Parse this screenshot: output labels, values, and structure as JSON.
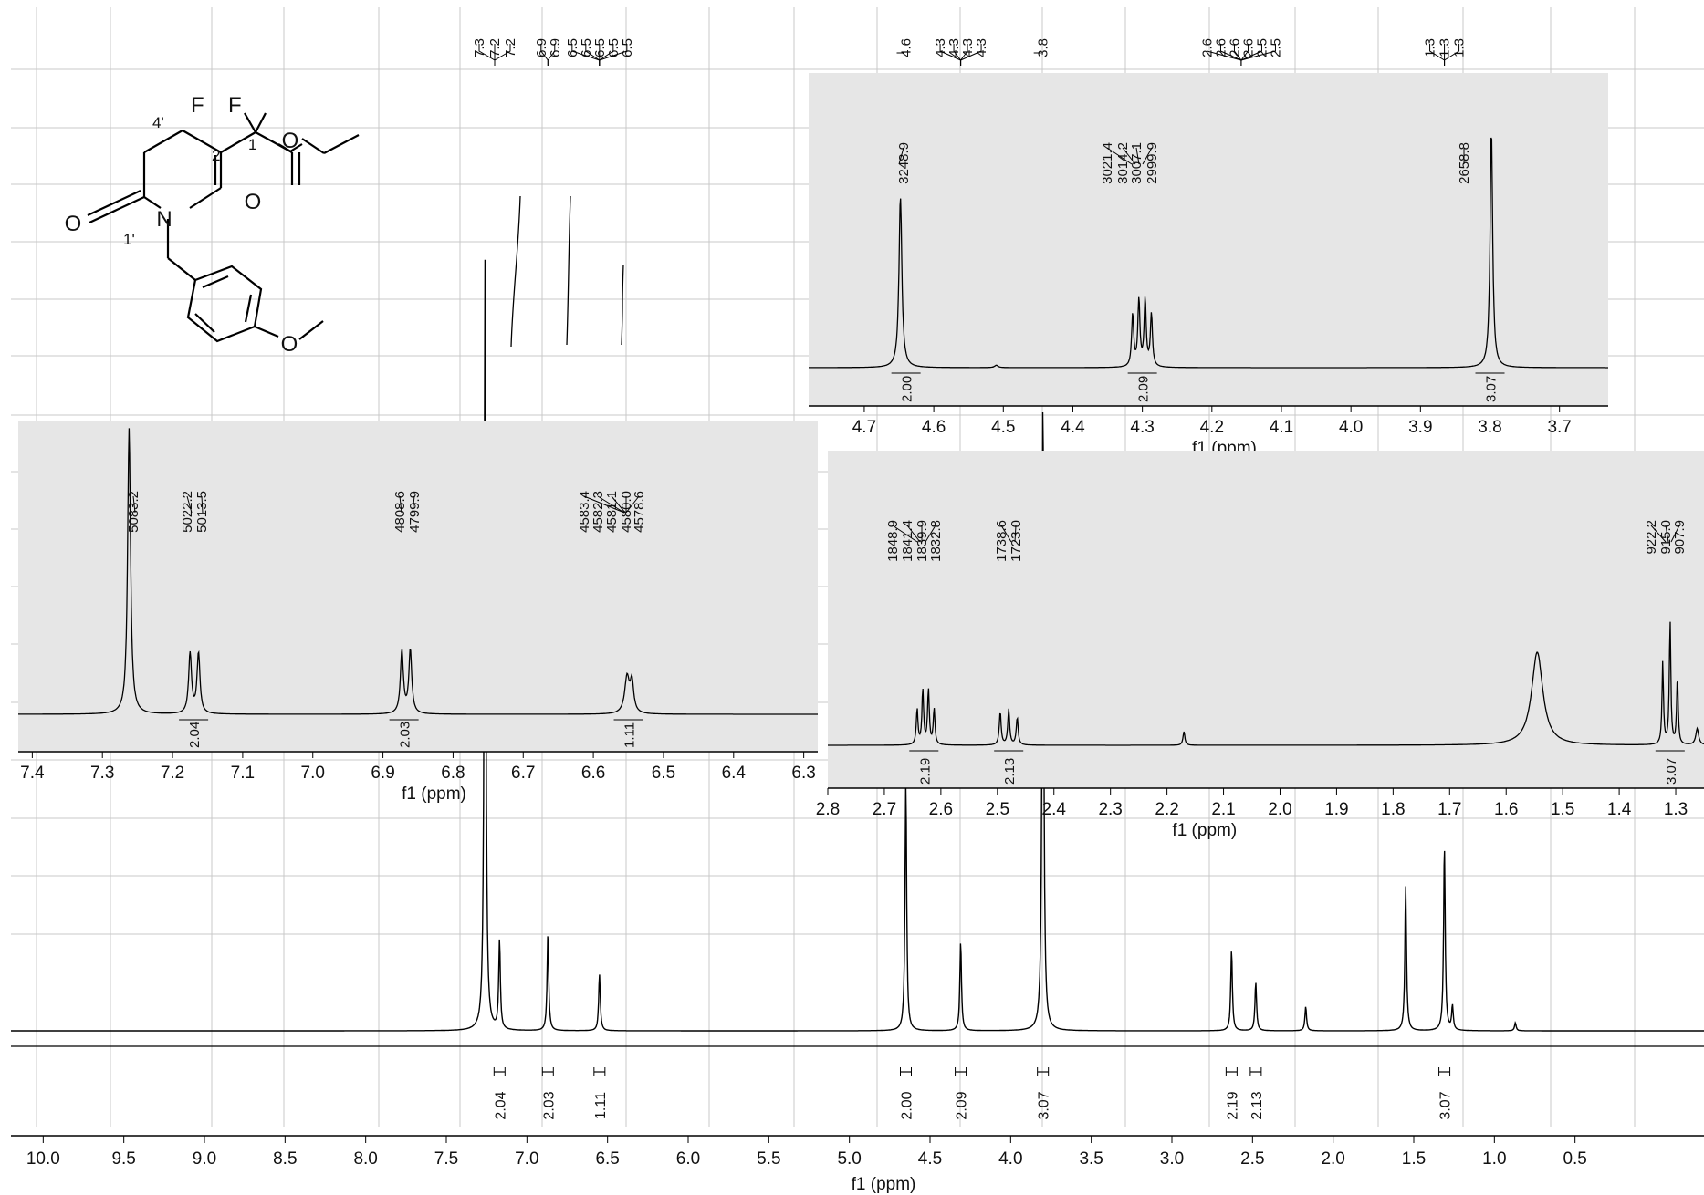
{
  "chart_data": {
    "type": "line",
    "title": "",
    "xlabel": "f1 (ppm)",
    "xlim": [
      10.2,
      -0.3
    ],
    "x_ticks": [
      "10.0",
      "9.5",
      "9.0",
      "8.5",
      "8.0",
      "7.5",
      "7.0",
      "6.5",
      "6.0",
      "5.5",
      "5.0",
      "4.5",
      "4.0",
      "3.5",
      "3.0",
      "2.5",
      "2.0",
      "1.5",
      "1.0",
      "0.5"
    ],
    "peaks": [
      {
        "ppm": 7.26,
        "height": 0.96
      },
      {
        "ppm": 7.17,
        "height": 0.11
      },
      {
        "ppm": 6.87,
        "height": 0.12
      },
      {
        "ppm": 6.55,
        "height": 0.07
      },
      {
        "ppm": 4.65,
        "height": 0.31
      },
      {
        "ppm": 4.31,
        "height": 0.11
      },
      {
        "ppm": 3.8,
        "height": 0.8
      },
      {
        "ppm": 2.63,
        "height": 0.1
      },
      {
        "ppm": 2.48,
        "height": 0.06
      },
      {
        "ppm": 2.17,
        "height": 0.03
      },
      {
        "ppm": 1.55,
        "height": 0.18
      },
      {
        "ppm": 1.31,
        "height": 0.23
      },
      {
        "ppm": 1.26,
        "height": 0.03
      },
      {
        "ppm": 0.87,
        "height": 0.01
      }
    ],
    "peak_labels_ppm": [
      "7.3",
      "7.2",
      "7.2",
      "6.9",
      "6.9",
      "6.5",
      "6.5",
      "6.5",
      "6.5",
      "6.5",
      "4.6",
      "4.3",
      "4.3",
      "4.3",
      "4.3",
      "3.8",
      "2.6",
      "2.6",
      "2.6",
      "2.6",
      "2.5",
      "2.5",
      "1.3",
      "1.3",
      "1.3"
    ],
    "integrals": [
      {
        "ppm": 7.17,
        "value": "2.04"
      },
      {
        "ppm": 6.87,
        "value": "2.03"
      },
      {
        "ppm": 6.55,
        "value": "1.11"
      },
      {
        "ppm": 4.65,
        "value": "2.00"
      },
      {
        "ppm": 4.31,
        "value": "2.09"
      },
      {
        "ppm": 3.8,
        "value": "3.07"
      },
      {
        "ppm": 2.63,
        "value": "2.19"
      },
      {
        "ppm": 2.48,
        "value": "2.13"
      },
      {
        "ppm": 1.31,
        "value": "3.07"
      }
    ],
    "insets": [
      {
        "name": "aromatic",
        "xlabel": "f1 (ppm)",
        "xlim": [
          7.42,
          6.28
        ],
        "x_ticks": [
          "7.4",
          "7.3",
          "7.2",
          "7.1",
          "7.0",
          "6.9",
          "6.8",
          "6.7",
          "6.6",
          "6.5",
          "6.4",
          "6.3"
        ],
        "hz_labels": [
          "5083.2",
          "5022.2",
          "5013.5",
          "4808.6",
          "4799.9",
          "4583.4",
          "4582.3",
          "4581.1",
          "4580.0",
          "4578.6"
        ],
        "integrals": [
          "2.04",
          "2.03",
          "1.11"
        ]
      },
      {
        "name": "mid",
        "xlabel": "f1 (ppm)",
        "xlim": [
          4.78,
          3.63
        ],
        "x_ticks": [
          "4.7",
          "4.6",
          "4.5",
          "4.4",
          "4.3",
          "4.2",
          "4.1",
          "4.0",
          "3.9",
          "3.8",
          "3.7"
        ],
        "hz_labels": [
          "3248.9",
          "3021.4",
          "3014.2",
          "3007.1",
          "2999.9",
          "2658.8"
        ],
        "integrals": [
          "2.00",
          "2.09",
          "3.07"
        ]
      },
      {
        "name": "aliphatic",
        "xlabel": "f1 (ppm)",
        "xlim": [
          2.8,
          1.25
        ],
        "x_ticks": [
          "2.8",
          "2.7",
          "2.6",
          "2.5",
          "2.4",
          "2.3",
          "2.2",
          "2.1",
          "2.0",
          "1.9",
          "1.8",
          "1.7",
          "1.6",
          "1.5",
          "1.4",
          "1.3"
        ],
        "hz_labels": [
          "1848.9",
          "1841.4",
          "1839.9",
          "1832.8",
          "1738.6",
          "1723.0",
          "922.2",
          "915.0",
          "907.9"
        ],
        "integrals": [
          "2.19",
          "2.13",
          "3.07"
        ]
      }
    ],
    "structure_labels": {
      "fluorine_1": "F",
      "fluorine_2": "F",
      "carbon_1": "1",
      "carbon_2": "2",
      "position_4": "4'",
      "position_1": "1'",
      "nitrogen": "N",
      "oxygen_ketone": "O",
      "oxygen_ester_carbonyl": "O",
      "oxygen_ester": "O",
      "oxygen_methoxy": "O"
    },
    "colors": {
      "line": "#000000",
      "inset_bg": "#e6e6e6",
      "grid": "#c8c8c8"
    }
  }
}
